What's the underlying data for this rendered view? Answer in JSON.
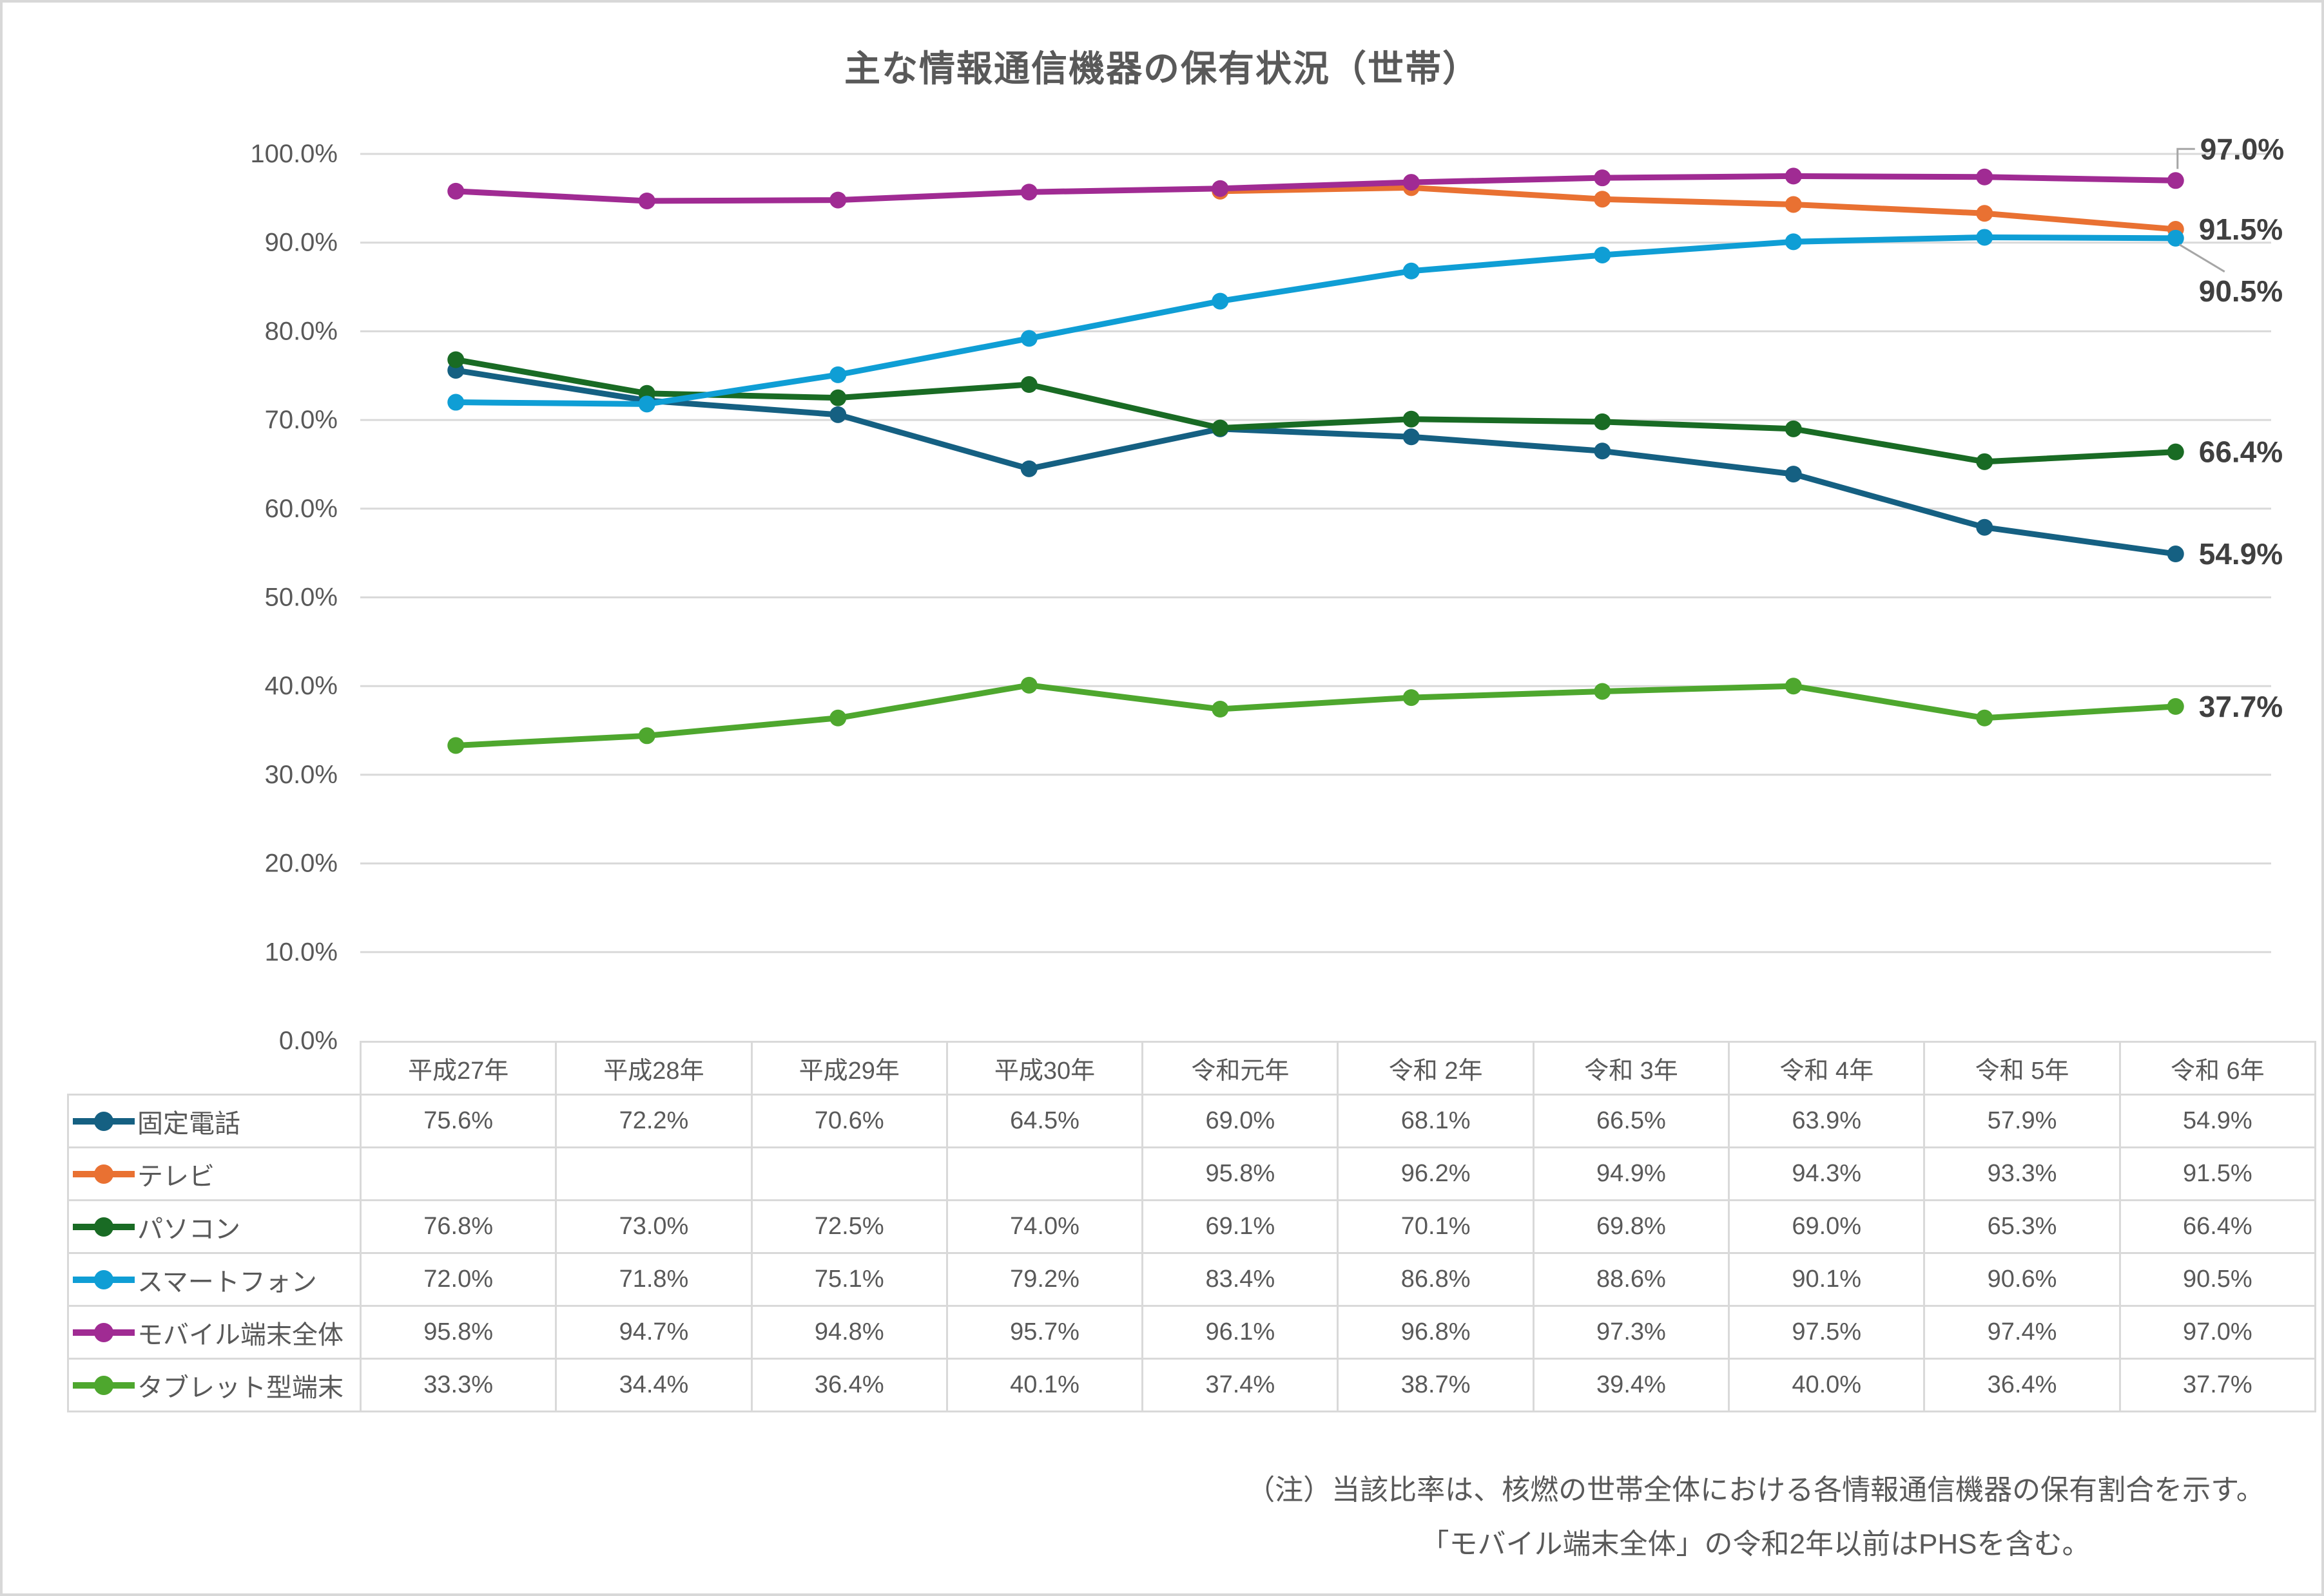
{
  "page": {
    "title": "主な情報通信機器の保有状況（世帯）"
  },
  "chart_data": {
    "type": "line",
    "title": "主な情報通信機器の保有状況（世帯）",
    "categories": [
      "平成27年",
      "平成28年",
      "平成29年",
      "平成30年",
      "令和元年",
      "令和 2年",
      "令和 3年",
      "令和 4年",
      "令和 5年",
      "令和 6年"
    ],
    "y_axis": {
      "min": 0,
      "max": 100,
      "step": 10,
      "grid": true,
      "tick_labels": [
        "0.0%",
        "10.0%",
        "20.0%",
        "30.0%",
        "40.0%",
        "50.0%",
        "60.0%",
        "70.0%",
        "80.0%",
        "90.0%",
        "100.0%"
      ]
    },
    "legend_position": "table-left",
    "series": [
      {
        "name": "固定電話",
        "color": "#156082",
        "values": [
          75.6,
          72.2,
          70.6,
          64.5,
          69.0,
          68.1,
          66.5,
          63.9,
          57.9,
          54.9
        ],
        "end_label": {
          "text": "54.9%",
          "placement": "right"
        }
      },
      {
        "name": "テレビ",
        "color": "#E97132",
        "values": [
          null,
          null,
          null,
          null,
          95.8,
          96.2,
          94.9,
          94.3,
          93.3,
          91.5
        ],
        "end_label": {
          "text": "91.5%",
          "placement": "right"
        }
      },
      {
        "name": "パソコン",
        "color": "#196B24",
        "values": [
          76.8,
          73.0,
          72.5,
          74.0,
          69.1,
          70.1,
          69.8,
          69.0,
          65.3,
          66.4
        ],
        "end_label": {
          "text": "66.4%",
          "placement": "right"
        }
      },
      {
        "name": "スマートフォン",
        "color": "#0F9ED5",
        "values": [
          72.0,
          71.8,
          75.1,
          79.2,
          83.4,
          86.8,
          88.6,
          90.1,
          90.6,
          90.5
        ],
        "end_label": {
          "text": "90.5%",
          "placement": "diag-below"
        }
      },
      {
        "name": "モバイル端末全体",
        "color": "#A02B93",
        "values": [
          95.8,
          94.7,
          94.8,
          95.7,
          96.1,
          96.8,
          97.3,
          97.5,
          97.4,
          97.0
        ],
        "end_label": {
          "text": "97.0%",
          "placement": "elbow-above"
        }
      },
      {
        "name": "タブレット型端末",
        "color": "#4EA72E",
        "values": [
          33.3,
          34.4,
          36.4,
          40.1,
          37.4,
          38.7,
          39.4,
          40.0,
          36.4,
          37.7
        ],
        "end_label": {
          "text": "37.7%",
          "placement": "right"
        }
      }
    ]
  },
  "note": {
    "line1": "（注）当該比率は、核燃の世帯全体における各情報通信機器の保有割合を示す。",
    "line2": "「モバイル端末全体」の令和2年以前はPHSを含む。"
  },
  "colors": {
    "grid": "#d9d9d9",
    "axis_text": "#595959",
    "end_label_text": "#404040",
    "leader": "#a6a6a6",
    "table_border": "#d9d9d9"
  }
}
